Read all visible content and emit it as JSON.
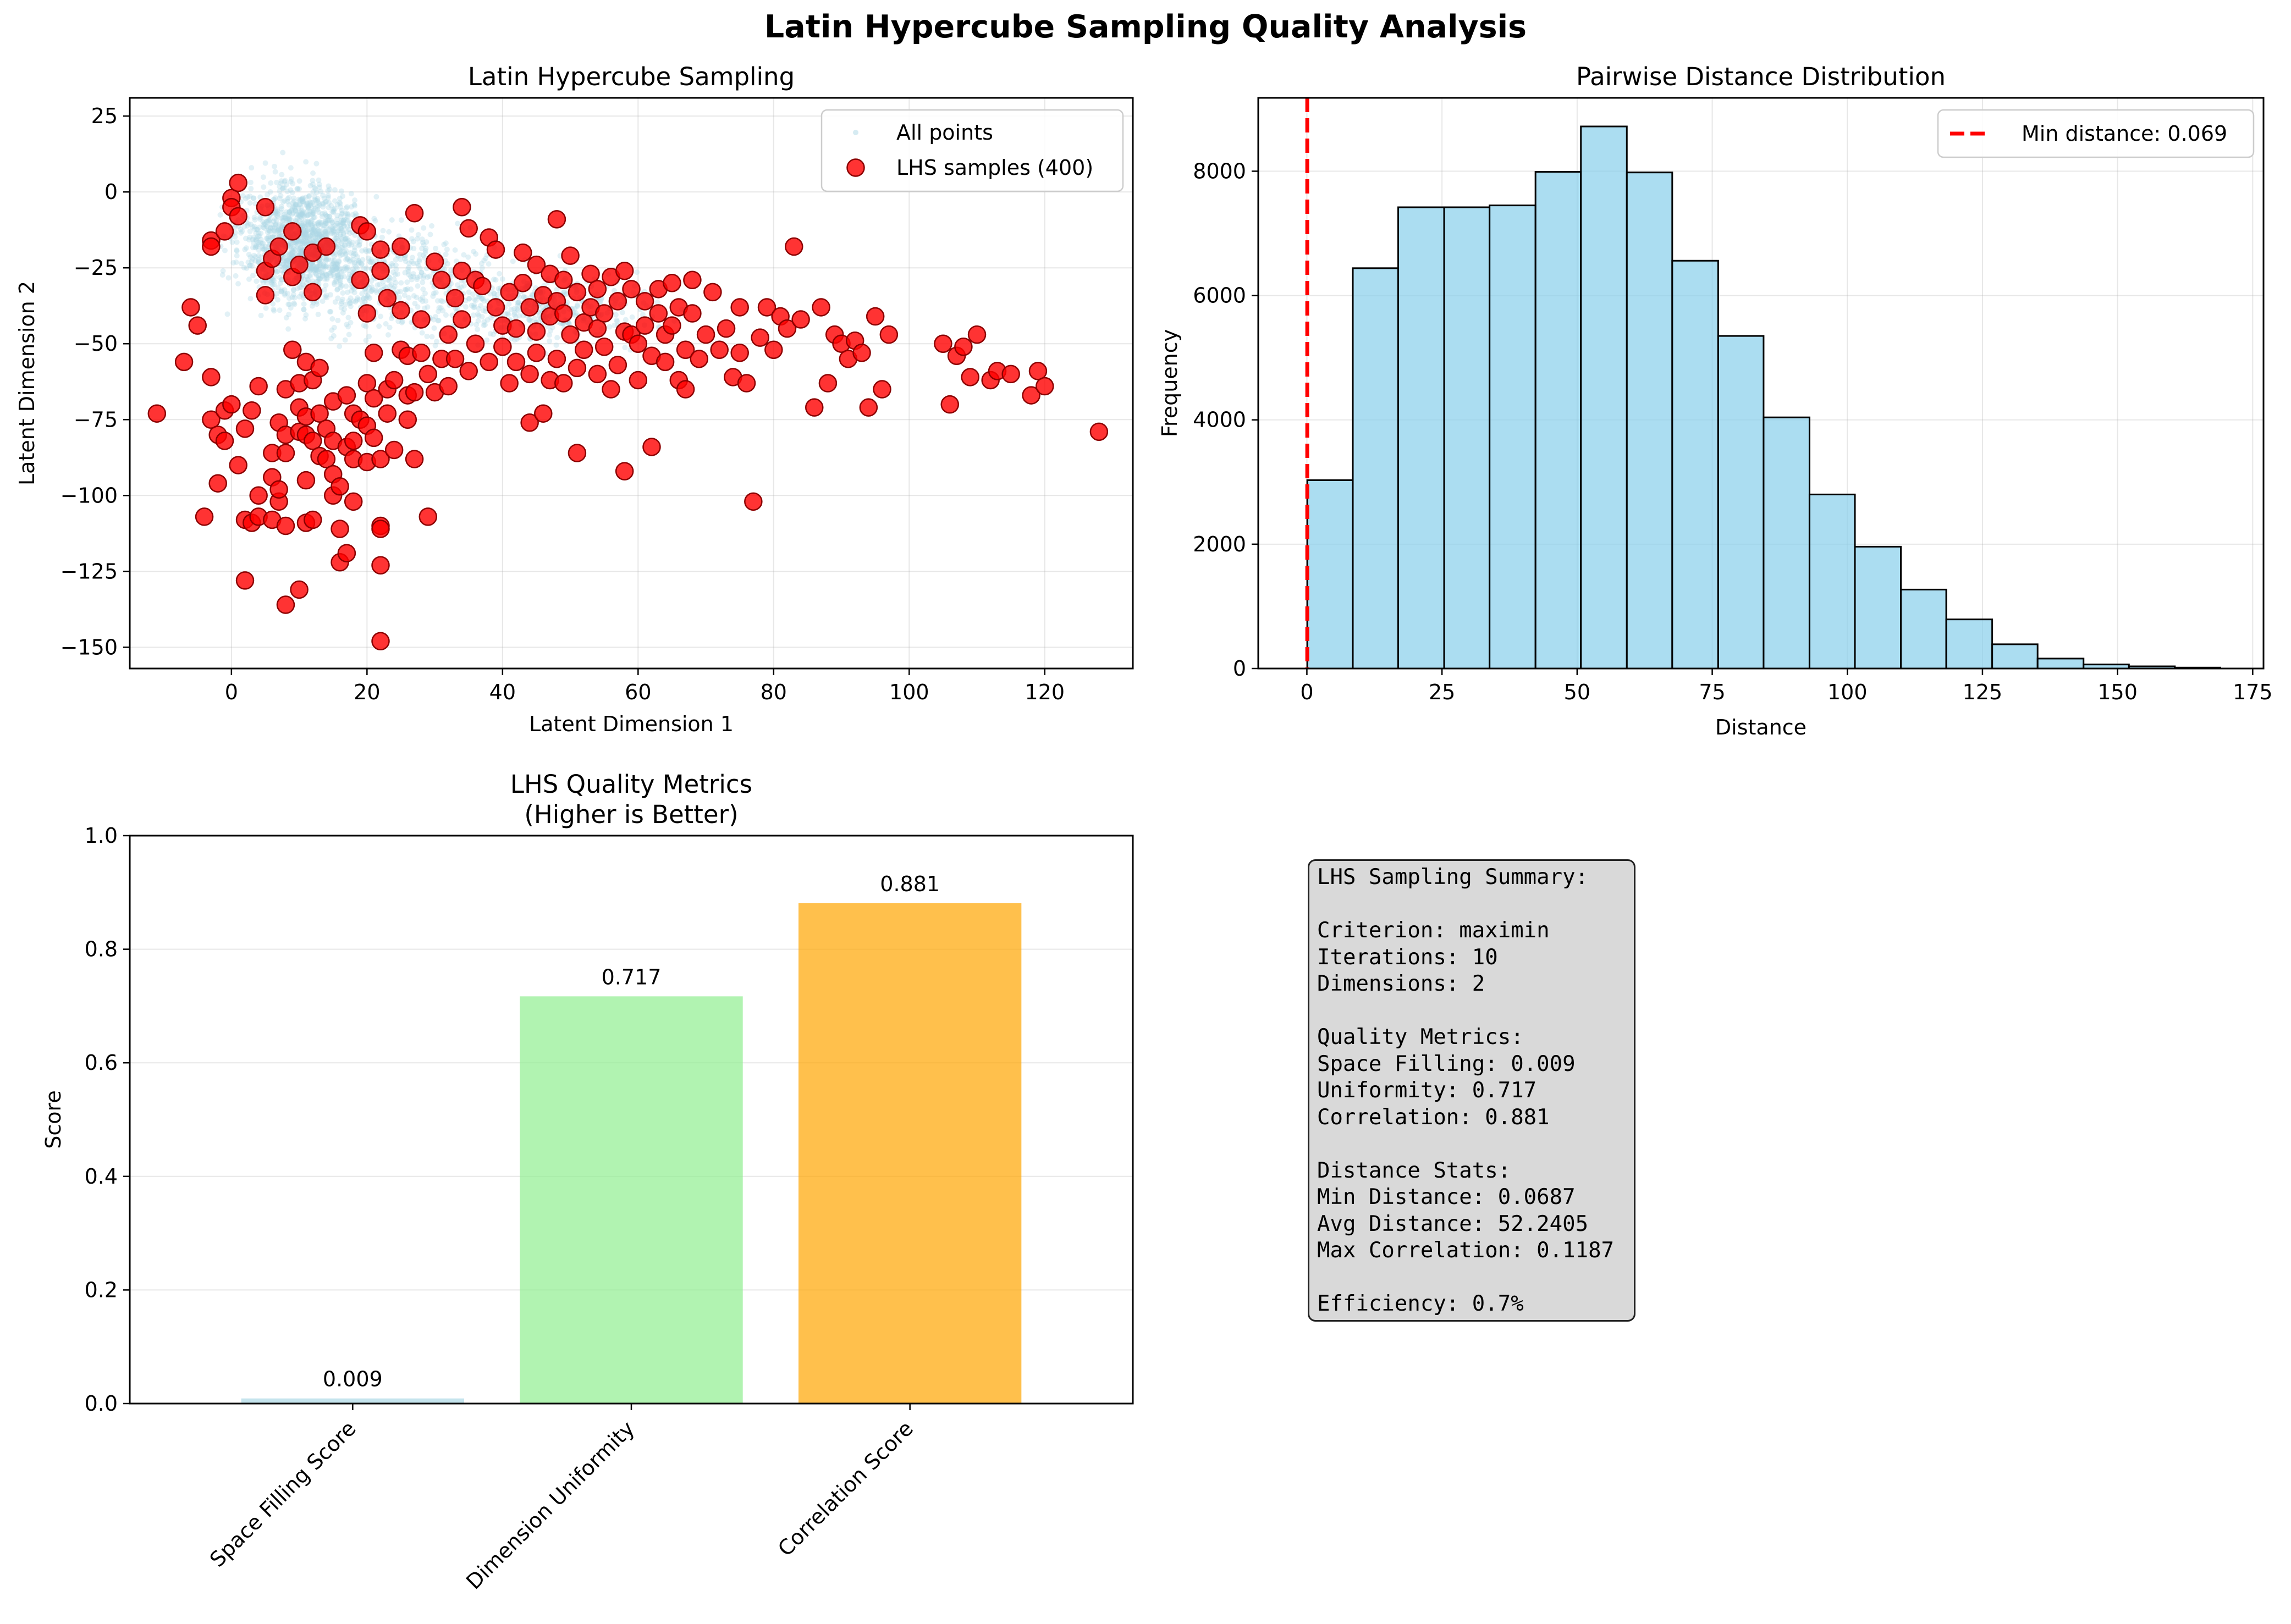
{
  "figure": {
    "suptitle": "Latin Hypercube Sampling Quality Analysis"
  },
  "chart_data": [
    {
      "type": "scatter",
      "title": "Latin Hypercube Sampling",
      "xlabel": "Latent Dimension 1",
      "ylabel": "Latent Dimension 2",
      "xlim": [
        -15,
        133
      ],
      "ylim": [
        -157,
        31
      ],
      "xticks": [
        0,
        20,
        40,
        60,
        80,
        100,
        120
      ],
      "yticks": [
        -150,
        -125,
        -100,
        -75,
        -50,
        -25,
        0,
        25
      ],
      "grid": true,
      "legend": "top-right",
      "series": [
        {
          "name": "All points",
          "color": "#add8e6",
          "cloud": "dense cluster centered near (10, -15), thinning toward (55, -40)"
        },
        {
          "name": "LHS samples (400)",
          "color": "#ff0000",
          "edgecolor": "#8b0000",
          "points": [
            [
              -11,
              -73
            ],
            [
              -7,
              -56
            ],
            [
              -6,
              -38
            ],
            [
              -5,
              -44
            ],
            [
              -4,
              -107
            ],
            [
              -3,
              -75
            ],
            [
              -3,
              -61
            ],
            [
              -3,
              -16
            ],
            [
              -3,
              -18
            ],
            [
              -2,
              -80
            ],
            [
              -2,
              -96
            ],
            [
              -1,
              -13
            ],
            [
              -1,
              -72
            ],
            [
              -1,
              -82
            ],
            [
              0,
              -2
            ],
            [
              0,
              -5
            ],
            [
              0,
              -70
            ],
            [
              1,
              -90
            ],
            [
              1,
              -8
            ],
            [
              1,
              3
            ],
            [
              2,
              -128
            ],
            [
              2,
              -108
            ],
            [
              2,
              -78
            ],
            [
              3,
              -72
            ],
            [
              3,
              -109
            ],
            [
              4,
              -107
            ],
            [
              4,
              -64
            ],
            [
              4,
              -100
            ],
            [
              5,
              -34
            ],
            [
              5,
              -5
            ],
            [
              5,
              -26
            ],
            [
              6,
              -94
            ],
            [
              6,
              -108
            ],
            [
              6,
              -86
            ],
            [
              6,
              -22
            ],
            [
              7,
              -76
            ],
            [
              7,
              -102
            ],
            [
              7,
              -18
            ],
            [
              7,
              -98
            ],
            [
              8,
              -86
            ],
            [
              8,
              -110
            ],
            [
              8,
              -80
            ],
            [
              8,
              -65
            ],
            [
              8,
              -136
            ],
            [
              9,
              -52
            ],
            [
              9,
              -28
            ],
            [
              9,
              -13
            ],
            [
              10,
              -131
            ],
            [
              10,
              -79
            ],
            [
              10,
              -24
            ],
            [
              10,
              -63
            ],
            [
              10,
              -71
            ],
            [
              11,
              -95
            ],
            [
              11,
              -109
            ],
            [
              11,
              -56
            ],
            [
              11,
              -74
            ],
            [
              11,
              -80
            ],
            [
              12,
              -62
            ],
            [
              12,
              -108
            ],
            [
              12,
              -82
            ],
            [
              12,
              -33
            ],
            [
              12,
              -20
            ],
            [
              13,
              -87
            ],
            [
              13,
              -73
            ],
            [
              13,
              -58
            ],
            [
              14,
              -78
            ],
            [
              14,
              -18
            ],
            [
              14,
              -88
            ],
            [
              15,
              -69
            ],
            [
              15,
              -100
            ],
            [
              15,
              -82
            ],
            [
              15,
              -93
            ],
            [
              16,
              -122
            ],
            [
              16,
              -111
            ],
            [
              16,
              -97
            ],
            [
              17,
              -119
            ],
            [
              17,
              -84
            ],
            [
              17,
              -67
            ],
            [
              18,
              -73
            ],
            [
              18,
              -102
            ],
            [
              18,
              -82
            ],
            [
              18,
              -88
            ],
            [
              19,
              -11
            ],
            [
              19,
              -29
            ],
            [
              19,
              -75
            ],
            [
              20,
              -40
            ],
            [
              20,
              -63
            ],
            [
              20,
              -77
            ],
            [
              20,
              -89
            ],
            [
              20,
              -13
            ],
            [
              21,
              -68
            ],
            [
              21,
              -53
            ],
            [
              21,
              -81
            ],
            [
              22,
              -123
            ],
            [
              22,
              -110
            ],
            [
              22,
              -88
            ],
            [
              22,
              -148
            ],
            [
              22,
              -19
            ],
            [
              22,
              -111
            ],
            [
              22,
              -26
            ],
            [
              23,
              -35
            ],
            [
              23,
              -65
            ],
            [
              23,
              -73
            ],
            [
              24,
              -85
            ],
            [
              24,
              -62
            ],
            [
              25,
              -39
            ],
            [
              25,
              -52
            ],
            [
              25,
              -18
            ],
            [
              26,
              -54
            ],
            [
              26,
              -67
            ],
            [
              26,
              -75
            ],
            [
              27,
              -66
            ],
            [
              27,
              -88
            ],
            [
              27,
              -7
            ],
            [
              28,
              -53
            ],
            [
              28,
              -42
            ],
            [
              29,
              -107
            ],
            [
              29,
              -60
            ],
            [
              30,
              -66
            ],
            [
              30,
              -23
            ],
            [
              31,
              -55
            ],
            [
              31,
              -29
            ],
            [
              32,
              -64
            ],
            [
              32,
              -47
            ],
            [
              33,
              -55
            ],
            [
              33,
              -35
            ],
            [
              34,
              -42
            ],
            [
              34,
              -26
            ],
            [
              34,
              -5
            ],
            [
              35,
              -59
            ],
            [
              35,
              -12
            ],
            [
              36,
              -50
            ],
            [
              36,
              -29
            ],
            [
              37,
              -31
            ],
            [
              38,
              -15
            ],
            [
              38,
              -56
            ],
            [
              39,
              -38
            ],
            [
              39,
              -19
            ],
            [
              40,
              -44
            ],
            [
              40,
              -51
            ],
            [
              41,
              -63
            ],
            [
              41,
              -33
            ],
            [
              42,
              -56
            ],
            [
              42,
              -45
            ],
            [
              43,
              -30
            ],
            [
              43,
              -20
            ],
            [
              44,
              -76
            ],
            [
              44,
              -60
            ],
            [
              44,
              -38
            ],
            [
              45,
              -46
            ],
            [
              45,
              -24
            ],
            [
              45,
              -53
            ],
            [
              46,
              -73
            ],
            [
              46,
              -34
            ],
            [
              47,
              -62
            ],
            [
              47,
              -41
            ],
            [
              47,
              -27
            ],
            [
              48,
              -55
            ],
            [
              48,
              -36
            ],
            [
              48,
              -9
            ],
            [
              49,
              -63
            ],
            [
              49,
              -40
            ],
            [
              49,
              -29
            ],
            [
              50,
              -47
            ],
            [
              50,
              -21
            ],
            [
              51,
              -86
            ],
            [
              51,
              -58
            ],
            [
              51,
              -33
            ],
            [
              52,
              -43
            ],
            [
              52,
              -52
            ],
            [
              53,
              -27
            ],
            [
              53,
              -38
            ],
            [
              54,
              -60
            ],
            [
              54,
              -45
            ],
            [
              54,
              -32
            ],
            [
              55,
              -40
            ],
            [
              55,
              -51
            ],
            [
              56,
              -28
            ],
            [
              56,
              -65
            ],
            [
              57,
              -36
            ],
            [
              57,
              -57
            ],
            [
              58,
              -92
            ],
            [
              58,
              -46
            ],
            [
              58,
              -26
            ],
            [
              59,
              -47
            ],
            [
              59,
              -32
            ],
            [
              60,
              -50
            ],
            [
              60,
              -62
            ],
            [
              61,
              -36
            ],
            [
              61,
              -44
            ],
            [
              62,
              -84
            ],
            [
              62,
              -54
            ],
            [
              63,
              -40
            ],
            [
              63,
              -32
            ],
            [
              64,
              -47
            ],
            [
              64,
              -56
            ],
            [
              65,
              -30
            ],
            [
              65,
              -44
            ],
            [
              66,
              -62
            ],
            [
              66,
              -38
            ],
            [
              67,
              -65
            ],
            [
              67,
              -52
            ],
            [
              68,
              -40
            ],
            [
              68,
              -29
            ],
            [
              69,
              -55
            ],
            [
              70,
              -47
            ],
            [
              71,
              -33
            ],
            [
              72,
              -52
            ],
            [
              73,
              -45
            ],
            [
              74,
              -61
            ],
            [
              75,
              -38
            ],
            [
              75,
              -53
            ],
            [
              76,
              -63
            ],
            [
              77,
              -102
            ],
            [
              78,
              -48
            ],
            [
              79,
              -38
            ],
            [
              80,
              -52
            ],
            [
              81,
              -41
            ],
            [
              82,
              -45
            ],
            [
              83,
              -18
            ],
            [
              84,
              -42
            ],
            [
              86,
              -71
            ],
            [
              87,
              -38
            ],
            [
              88,
              -63
            ],
            [
              89,
              -47
            ],
            [
              90,
              -50
            ],
            [
              91,
              -55
            ],
            [
              92,
              -49
            ],
            [
              93,
              -53
            ],
            [
              94,
              -71
            ],
            [
              95,
              -41
            ],
            [
              96,
              -65
            ],
            [
              97,
              -47
            ],
            [
              105,
              -50
            ],
            [
              106,
              -70
            ],
            [
              107,
              -54
            ],
            [
              108,
              -51
            ],
            [
              109,
              -61
            ],
            [
              110,
              -47
            ],
            [
              112,
              -62
            ],
            [
              113,
              -59
            ],
            [
              115,
              -60
            ],
            [
              118,
              -67
            ],
            [
              119,
              -59
            ],
            [
              120,
              -64
            ],
            [
              128,
              -79
            ]
          ]
        }
      ]
    },
    {
      "type": "bar",
      "title": "Pairwise Distance Distribution",
      "xlabel": "Distance",
      "ylabel": "Frequency",
      "xlim": [
        -9,
        177
      ],
      "ylim": [
        0,
        9180
      ],
      "xticks": [
        0,
        25,
        50,
        75,
        100,
        125,
        150,
        175
      ],
      "yticks": [
        0,
        2000,
        4000,
        6000,
        8000
      ],
      "grid": true,
      "legend": "top-right",
      "bin_edges": [
        0.069,
        8.5,
        16.9,
        25.4,
        33.8,
        42.3,
        50.7,
        59.2,
        67.6,
        76.1,
        84.5,
        93.0,
        101.4,
        109.9,
        118.3,
        126.8,
        135.2,
        143.7,
        152.1,
        160.6,
        169.0
      ],
      "values": [
        3030,
        6440,
        7420,
        7420,
        7450,
        7990,
        8720,
        7980,
        6560,
        5350,
        4040,
        2800,
        1960,
        1270,
        790,
        390,
        160,
        65,
        35,
        15
      ],
      "series": [
        {
          "name": "Min distance: 0.069",
          "type": "vline",
          "x": 0.069,
          "color": "#ff0000"
        }
      ]
    },
    {
      "type": "bar",
      "title": "LHS Quality Metrics\n(Higher is Better)",
      "ylabel": "Score",
      "ylim": [
        0,
        1
      ],
      "yticks": [
        0.0,
        0.2,
        0.4,
        0.6,
        0.8,
        1.0
      ],
      "grid": true,
      "categories": [
        "Space Filling Score",
        "Dimension Uniformity",
        "Correlation Score"
      ],
      "values": [
        0.009,
        0.717,
        0.881
      ],
      "labels": [
        "0.009",
        "0.717",
        "0.881"
      ],
      "colors": [
        "#add8e6",
        "#90ee90",
        "#ffa500"
      ]
    }
  ],
  "summary_box": {
    "lines": [
      "LHS Sampling Summary:",
      "",
      "Criterion: maximin",
      "Iterations: 10",
      "Dimensions: 2",
      "",
      "Quality Metrics:",
      "Space Filling: 0.009",
      "Uniformity: 0.717",
      "Correlation: 0.881",
      "",
      "Distance Stats:",
      "Min Distance: 0.0687",
      "Avg Distance: 52.2405",
      "Max Correlation: 0.1187",
      "",
      "Efficiency: 0.7%"
    ]
  }
}
